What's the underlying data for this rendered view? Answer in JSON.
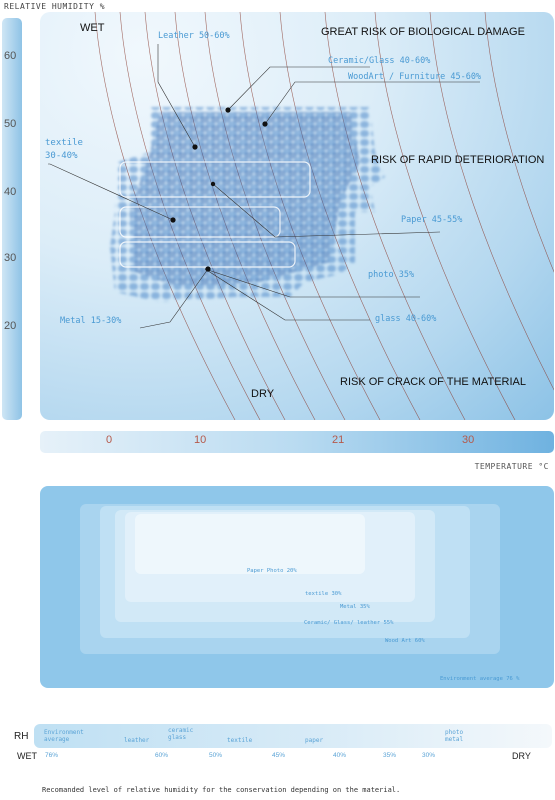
{
  "chart_data": [
    {
      "type": "scatter",
      "ylabel": "RELATIVE HUMIDITY %",
      "xlabel": "TEMPERATURE °C",
      "y_ticks": [
        "60",
        "50",
        "40",
        "30",
        "20"
      ],
      "x_ticks": [
        "0",
        "10",
        "21",
        "30"
      ],
      "zone_labels": {
        "wet": "WET",
        "dry": "DRY",
        "bio": "GREAT RISK OF BIOLOGICAL DAMAGE",
        "rapid": "RISK OF RAPID DETERIORATION",
        "crack": "RISK OF CRACK OF THE MATERIAL"
      },
      "annotations": [
        {
          "text": "Leather 50-60%"
        },
        {
          "text": "Ceramic/Glass 40-60%"
        },
        {
          "text": "WoodArt / Furniture 45-60%"
        },
        {
          "text": "textile"
        },
        {
          "text": "30-40%"
        },
        {
          "text": "Paper 45-55%"
        },
        {
          "text": "photo 35%"
        },
        {
          "text": "glass 40-60%"
        },
        {
          "text": "Metal 15-30%"
        }
      ]
    },
    {
      "type": "area",
      "labels": [
        "Paper Photo 20%",
        "textile 30%",
        "Metal 35%",
        "Ceramic/ Glass/ leather 55%",
        "Wood Art 60%",
        "Environment average 76 %"
      ]
    },
    {
      "type": "bar",
      "rh_label": "RH",
      "wet_label": "WET",
      "dry_label": "DRY",
      "materials": [
        {
          "name": "Environment\naverage",
          "pct": "76%"
        },
        {
          "name": "leather",
          "pct": "60%"
        },
        {
          "name": "ceramic\nglass",
          "pct": "50%"
        },
        {
          "name": "textile",
          "pct": "45%"
        },
        {
          "name": "paper",
          "pct": "40%"
        },
        {
          "name": "",
          "pct": "35%"
        },
        {
          "name": "photo\nmetal",
          "pct": "30%"
        }
      ]
    }
  ],
  "caption": "Recomanded level of relative humidity for the conservation depending on the material."
}
